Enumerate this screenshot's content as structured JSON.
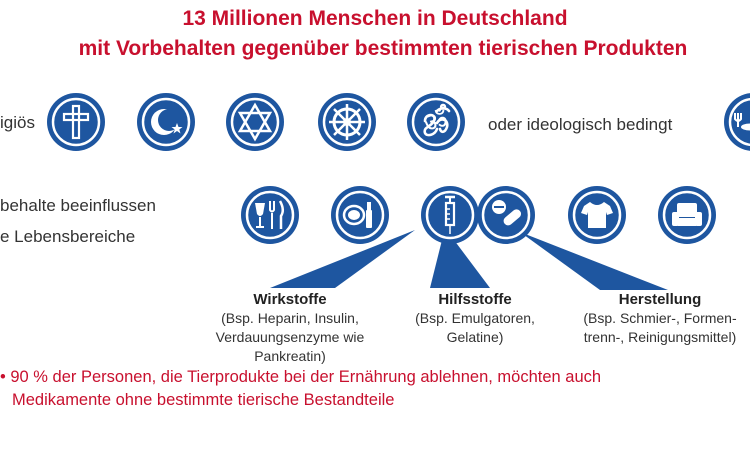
{
  "title": {
    "line1": "13 Millionen Menschen in Deutschland",
    "line2": "mit Vorbehalten gegenüber bestimmten tierischen Produkten"
  },
  "row1": {
    "left_label": "igiös",
    "right_label": "oder ideologisch bedingt",
    "icons": [
      "cross-icon",
      "crescent-star-icon",
      "star-of-david-icon",
      "dharma-wheel-icon",
      "om-icon",
      "vegan-dining-icon"
    ]
  },
  "row2": {
    "label_line1": "behalte beeinflussen",
    "label_line2": "e Lebensbereiche",
    "icons": [
      "dining-icon",
      "cosmetics-icon",
      "syringe-icon",
      "pills-icon",
      "shirt-icon",
      "armchair-icon"
    ]
  },
  "groups": [
    {
      "heading": "Wirkstoffe",
      "lines": [
        "(Bsp. Heparin, Insulin,",
        "Verdauungsenzyme wie",
        "Pankreatin)"
      ]
    },
    {
      "heading": "Hilfsstoffe",
      "lines": [
        "(Bsp. Emulgatoren,",
        "Gelatine)"
      ]
    },
    {
      "heading": "Herstellung",
      "lines": [
        "(Bsp. Schmier-, Formen-",
        "trenn-, Reinigungsmittel)"
      ]
    }
  ],
  "footnote": {
    "line1": "• 90 % der Personen, die Tierprodukte bei der Ernährung ablehnen, möchten auch",
    "line2": "Medikamente ohne bestimmte tierische Bestandteile"
  },
  "colors": {
    "accent_red": "#c8102e",
    "icon_blue": "#1e56a0"
  }
}
